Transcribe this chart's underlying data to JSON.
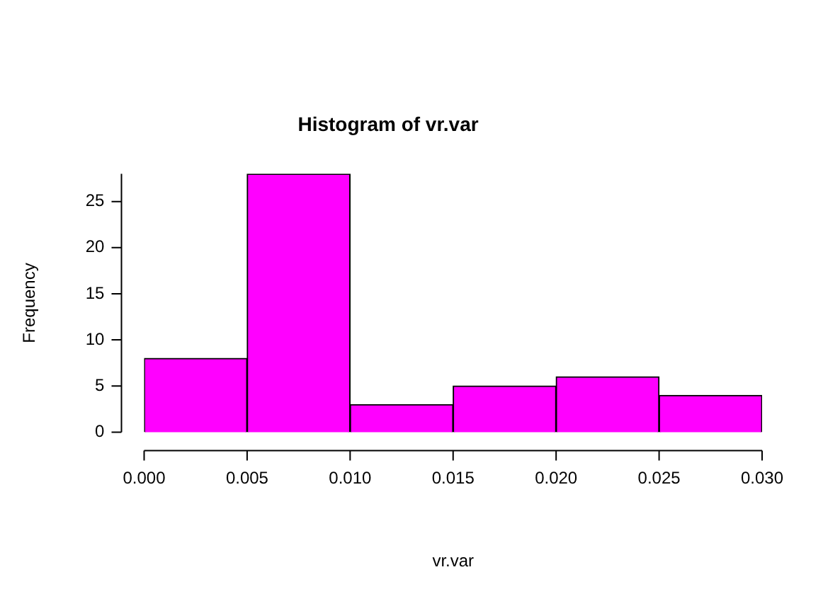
{
  "chart_data": {
    "type": "histogram",
    "title": "Histogram of vr.var",
    "xlabel": "vr.var",
    "ylabel": "Frequency",
    "bins": [
      0,
      0.005,
      0.01,
      0.015,
      0.02,
      0.025,
      0.03
    ],
    "values": [
      8,
      28,
      3,
      5,
      6,
      4
    ],
    "color": "#ff00ff",
    "xlim": [
      0,
      0.03
    ],
    "xticks": [
      {
        "value": 0,
        "label": "0.000"
      },
      {
        "value": 0.005,
        "label": "0.005"
      },
      {
        "value": 0.01,
        "label": "0.010"
      },
      {
        "value": 0.015,
        "label": "0.015"
      },
      {
        "value": 0.02,
        "label": "0.020"
      },
      {
        "value": 0.025,
        "label": "0.025"
      },
      {
        "value": 0.03,
        "label": "0.030"
      }
    ],
    "ylim": [
      0,
      28
    ],
    "yticks": [
      0,
      5,
      10,
      15,
      20,
      25
    ],
    "grid": false,
    "legend": false
  }
}
